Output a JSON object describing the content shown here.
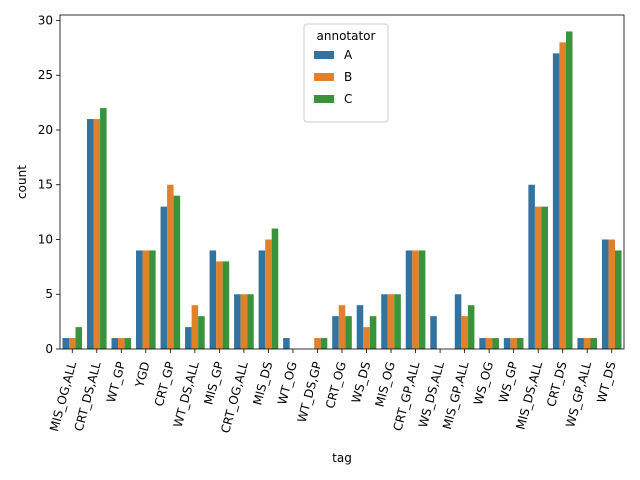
{
  "chart_data": {
    "type": "bar",
    "xlabel": "tag",
    "ylabel": "count",
    "ylim": [
      0,
      30.5
    ],
    "yticks": [
      0,
      5,
      10,
      15,
      20,
      25,
      30
    ],
    "grid": false,
    "legend": {
      "title": "annotator",
      "placement": "top-center"
    },
    "categories": [
      "MIS_OG,ALL",
      "CRT_DS,ALL",
      "WT_GP",
      "YGD",
      "CRT_GP",
      "WT_DS,ALL",
      "MIS_GP",
      "CRT_OG,ALL",
      "MIS_DS",
      "WT_OG",
      "WT_DS,GP",
      "CRT_OG",
      "WS_DS",
      "MIS_OG",
      "CRT_GP,ALL",
      "WS_DS,ALL",
      "MIS_GP,ALL",
      "WS_OG",
      "WS_GP",
      "MIS_DS,ALL",
      "CRT_DS",
      "WS_GP,ALL",
      "WT_DS"
    ],
    "series": [
      {
        "name": "A",
        "color": "#3274a1",
        "values": [
          1,
          21,
          1,
          9,
          13,
          2,
          9,
          5,
          9,
          1,
          0,
          3,
          4,
          5,
          9,
          3,
          5,
          1,
          1,
          15,
          27,
          1,
          10
        ]
      },
      {
        "name": "B",
        "color": "#e1812c",
        "values": [
          1,
          21,
          1,
          9,
          15,
          4,
          8,
          5,
          10,
          0,
          1,
          4,
          2,
          5,
          9,
          0,
          3,
          1,
          1,
          13,
          28,
          1,
          10
        ]
      },
      {
        "name": "C",
        "color": "#3a923a",
        "values": [
          2,
          22,
          1,
          9,
          14,
          3,
          8,
          5,
          11,
          0,
          1,
          3,
          3,
          5,
          9,
          0,
          4,
          1,
          1,
          13,
          29,
          1,
          9
        ]
      }
    ]
  }
}
